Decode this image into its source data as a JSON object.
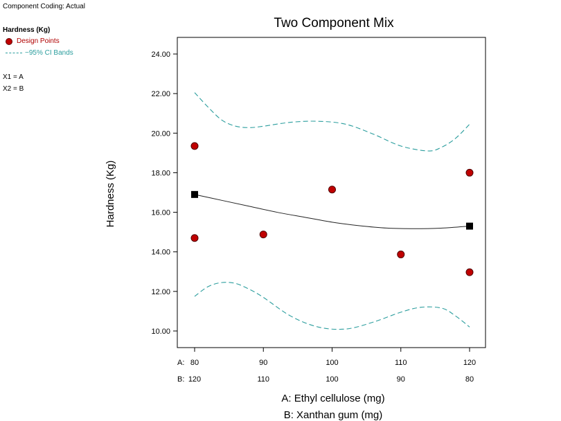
{
  "header": {
    "component_coding": "Component Coding: Actual"
  },
  "legend": {
    "title": "Hardness (Kg)",
    "points_label": "Design Points",
    "bands_label": "−95% CI Bands",
    "x1_map": "X1 = A",
    "x2_map": "X2 = B",
    "point_color": "#c00000",
    "band_color": "#2a9d9d"
  },
  "chart_data": {
    "type": "line",
    "title": "Two Component Mix",
    "ylabel": "Hardness (Kg)",
    "xlabel_a": "A: Ethyl cellulose (mg)",
    "xlabel_b": "B: Xanthan gum (mg)",
    "ylim": [
      9.2,
      25.0
    ],
    "xlim": [
      80,
      120
    ],
    "yticks": [
      10.0,
      12.0,
      14.0,
      16.0,
      18.0,
      20.0,
      22.0,
      24.0
    ],
    "ytick_labels": [
      "10.00",
      "12.00",
      "14.00",
      "16.00",
      "18.00",
      "20.00",
      "22.00",
      "24.00"
    ],
    "xticks": [
      80,
      90,
      100,
      110,
      120
    ],
    "a_tick_prefix": "A:",
    "b_tick_prefix": "B:",
    "a_tick_labels": [
      "80",
      "90",
      "100",
      "110",
      "120"
    ],
    "b_tick_labels": [
      "120",
      "110",
      "100",
      "90",
      "80"
    ],
    "fit_line": {
      "x": [
        80,
        84,
        88,
        92,
        96,
        100,
        104,
        108,
        112,
        116,
        120
      ],
      "y": [
        16.9,
        16.6,
        16.3,
        16.0,
        15.75,
        15.5,
        15.32,
        15.2,
        15.17,
        15.2,
        15.3
      ]
    },
    "ci_upper": {
      "x": [
        80,
        82,
        84,
        86,
        88,
        90,
        94,
        98,
        102,
        106,
        110,
        114,
        116,
        118,
        120
      ],
      "y": [
        22.05,
        21.3,
        20.65,
        20.35,
        20.28,
        20.35,
        20.55,
        20.6,
        20.45,
        19.95,
        19.35,
        19.1,
        19.3,
        19.75,
        20.45
      ]
    },
    "ci_lower": {
      "x": [
        80,
        82,
        84,
        86,
        88,
        90,
        94,
        98,
        102,
        106,
        110,
        113,
        116,
        118,
        120
      ],
      "y": [
        11.75,
        12.25,
        12.45,
        12.4,
        12.1,
        11.7,
        10.75,
        10.2,
        10.1,
        10.45,
        10.95,
        11.2,
        11.15,
        10.75,
        10.2
      ]
    },
    "design_points": {
      "x": [
        80,
        80,
        90,
        100,
        110,
        120,
        120
      ],
      "y": [
        19.35,
        14.7,
        14.88,
        17.15,
        13.87,
        18.0,
        12.97
      ]
    },
    "endpoint_markers": {
      "x": [
        80,
        120
      ],
      "y": [
        16.9,
        15.3
      ]
    }
  }
}
